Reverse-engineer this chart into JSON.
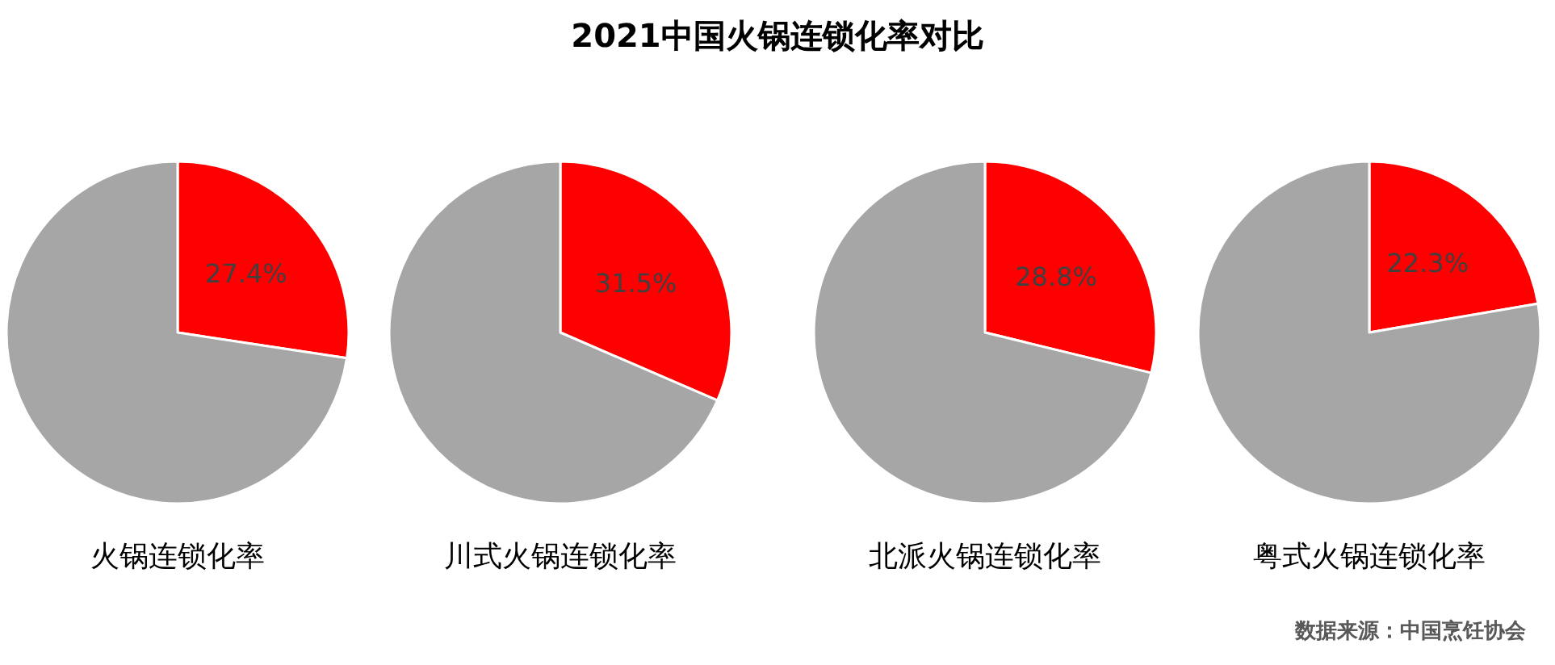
{
  "chart_data": [
    {
      "type": "other",
      "title": "2021中国火锅连锁化率对比",
      "annotations": [
        "数据来源：中国烹饪协会"
      ]
    },
    {
      "type": "pie",
      "title": "火锅连锁化率",
      "categories": [
        null,
        null
      ],
      "values": [
        27.4,
        72.6
      ],
      "colors": [
        "#ff0000",
        "#a6a6a6"
      ],
      "value_labels": [
        "27.4%",
        null
      ]
    },
    {
      "type": "pie",
      "title": "川式火锅连锁化率",
      "categories": [
        null,
        null
      ],
      "values": [
        31.5,
        68.5
      ],
      "colors": [
        "#ff0000",
        "#a6a6a6"
      ],
      "value_labels": [
        "31.5%",
        null
      ]
    },
    {
      "type": "pie",
      "title": "北派火锅连锁化率",
      "categories": [
        null,
        null
      ],
      "values": [
        28.8,
        71.2
      ],
      "colors": [
        "#ff0000",
        "#a6a6a6"
      ],
      "value_labels": [
        "28.8%",
        null
      ]
    },
    {
      "type": "pie",
      "title": "粤式火锅连锁化率",
      "categories": [
        null,
        null
      ],
      "values": [
        22.3,
        77.7
      ],
      "colors": [
        "#ff0000",
        "#a6a6a6"
      ],
      "value_labels": [
        "22.3%",
        null
      ]
    }
  ]
}
